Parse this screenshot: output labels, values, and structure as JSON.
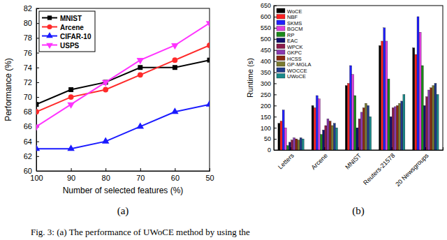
{
  "caption": "Fig. 3: (a) The performance of UWoCE method by using the",
  "chart_data": [
    {
      "type": "line",
      "title": "(a)",
      "x_label": "Number of selected features (%)",
      "y_label": "Performance (%)",
      "x": [
        100,
        90,
        80,
        70,
        60,
        50
      ],
      "xlim": [
        100,
        50
      ],
      "xticks": [
        100,
        90,
        80,
        70,
        60,
        50
      ],
      "ylim": [
        60,
        82
      ],
      "yticks": [
        60,
        62,
        64,
        66,
        68,
        70,
        72,
        74,
        76,
        78,
        80,
        82
      ],
      "legend": "upper-left",
      "grid": false,
      "series": [
        {
          "name": "MNIST",
          "color": "#000000",
          "marker": "square",
          "values": [
            69,
            71,
            72,
            74,
            74,
            75
          ]
        },
        {
          "name": "Arcene",
          "color": "#ff2a2a",
          "marker": "circle",
          "values": [
            68,
            70,
            71,
            73,
            75,
            77
          ]
        },
        {
          "name": "CIFAR-10",
          "color": "#1a1aff",
          "marker": "triangle-up",
          "values": [
            63,
            63,
            64,
            66,
            68,
            69
          ]
        },
        {
          "name": "USPS",
          "color": "#ff33ff",
          "marker": "triangle-down",
          "values": [
            66,
            69,
            72,
            75,
            77,
            80
          ]
        }
      ]
    },
    {
      "type": "bar",
      "title": "(b)",
      "y_label": "Runtime (s)",
      "categories": [
        "Letters",
        "Arcene",
        "MNIST",
        "Reuters-21578",
        "20 Newsgroups"
      ],
      "ylim": [
        0,
        650
      ],
      "yticks": [
        0,
        50,
        100,
        150,
        200,
        250,
        300,
        350,
        400,
        450,
        500,
        550,
        600,
        650
      ],
      "legend": "upper-left",
      "grid": false,
      "series": [
        {
          "name": "WoCE",
          "color": "#000000",
          "values": [
            120,
            200,
            290,
            470,
            460
          ]
        },
        {
          "name": "NBF",
          "color": "#ff2020",
          "values": [
            130,
            190,
            300,
            490,
            430
          ]
        },
        {
          "name": "SKMS",
          "color": "#2020ff",
          "values": [
            180,
            245,
            380,
            550,
            600
          ]
        },
        {
          "name": "BGCM",
          "color": "#e040e0",
          "values": [
            100,
            230,
            340,
            490,
            530
          ]
        },
        {
          "name": "RP",
          "color": "#1a8a1a",
          "values": [
            20,
            70,
            245,
            320,
            380
          ]
        },
        {
          "name": "EAC",
          "color": "#10106e",
          "values": [
            35,
            90,
            100,
            150,
            200
          ]
        },
        {
          "name": "WPCK",
          "color": "#8a1a4a",
          "values": [
            45,
            110,
            140,
            190,
            240
          ]
        },
        {
          "name": "GKPC",
          "color": "#8a3ab0",
          "values": [
            55,
            140,
            170,
            195,
            270
          ]
        },
        {
          "name": "HCSS",
          "color": "#8a2a10",
          "values": [
            50,
            130,
            190,
            200,
            280
          ]
        },
        {
          "name": "GP-MGLA",
          "color": "#7a7a30",
          "values": [
            45,
            110,
            210,
            210,
            290
          ]
        },
        {
          "name": "WOCCE",
          "color": "#203a8a",
          "values": [
            55,
            120,
            200,
            220,
            300
          ]
        },
        {
          "name": "UWoCE",
          "color": "#1a8a8a",
          "values": [
            50,
            100,
            150,
            250,
            250
          ]
        }
      ]
    }
  ]
}
